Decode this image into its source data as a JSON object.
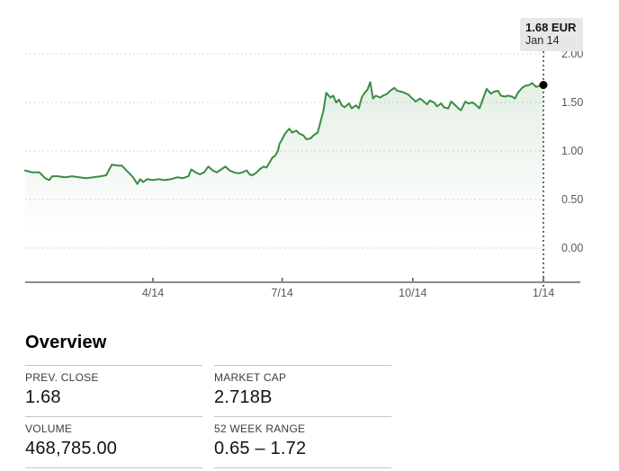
{
  "chart_data": {
    "type": "area",
    "title": "",
    "unit": "EUR",
    "x_unit": "day_of_year",
    "ylim": [
      0,
      2
    ],
    "grid": "dotted horizontal",
    "legend": "none",
    "line_color": "#3a8c43",
    "fill_top_color": "rgba(62,141,70,0.14)",
    "grid_color": "#cfcfcf",
    "axis_color": "#8c8c8c",
    "tick_text_color": "#595959",
    "ytick_labels": [
      "2.00",
      "1.50",
      "1.00",
      "0.50",
      "0.00"
    ],
    "ytick_values": [
      2.0,
      1.5,
      1.0,
      0.5,
      0.0
    ],
    "xtick_labels": [
      "4/14",
      "7/14",
      "10/14",
      "1/14"
    ],
    "xtick_days": [
      90,
      181,
      273,
      365
    ],
    "cursor": {
      "price_label": "1.68 EUR",
      "date_label": "Jan 14",
      "day": 365,
      "value": 1.68
    },
    "x": [
      0,
      5,
      10,
      14,
      17,
      19,
      23,
      28,
      33,
      38,
      43,
      48,
      53,
      57,
      61,
      65,
      68,
      72,
      76,
      79,
      81,
      83,
      86,
      90,
      94,
      98,
      103,
      107,
      111,
      115,
      117,
      120,
      123,
      126,
      129,
      132,
      135,
      138,
      141,
      144,
      147,
      150,
      153,
      156,
      158,
      160,
      163,
      165,
      168,
      170,
      172,
      174,
      176,
      178,
      179,
      181,
      183,
      186,
      188,
      191,
      193,
      196,
      198,
      201,
      203,
      206,
      208,
      210,
      212,
      215,
      217,
      219,
      221,
      223,
      225,
      228,
      230,
      233,
      235,
      237,
      239,
      241,
      243,
      245,
      247,
      250,
      252,
      255,
      257,
      260,
      262,
      265,
      267,
      270,
      272,
      275,
      278,
      280,
      283,
      285,
      288,
      290,
      293,
      295,
      298,
      300,
      303,
      305,
      307,
      310,
      312,
      315,
      317,
      320,
      323,
      325,
      328,
      330,
      333,
      335,
      338,
      340,
      343,
      345,
      347,
      350,
      352,
      355,
      357,
      360,
      362,
      365
    ],
    "values": [
      0.8,
      0.78,
      0.78,
      0.72,
      0.7,
      0.74,
      0.74,
      0.73,
      0.74,
      0.73,
      0.72,
      0.73,
      0.74,
      0.75,
      0.86,
      0.85,
      0.85,
      0.79,
      0.73,
      0.66,
      0.71,
      0.68,
      0.71,
      0.7,
      0.71,
      0.7,
      0.71,
      0.73,
      0.72,
      0.74,
      0.81,
      0.78,
      0.76,
      0.78,
      0.84,
      0.8,
      0.78,
      0.81,
      0.84,
      0.8,
      0.78,
      0.77,
      0.78,
      0.8,
      0.76,
      0.75,
      0.78,
      0.81,
      0.84,
      0.83,
      0.88,
      0.93,
      0.95,
      1.0,
      1.07,
      1.12,
      1.18,
      1.23,
      1.19,
      1.21,
      1.18,
      1.16,
      1.12,
      1.13,
      1.16,
      1.19,
      1.3,
      1.41,
      1.6,
      1.55,
      1.57,
      1.5,
      1.53,
      1.47,
      1.45,
      1.49,
      1.44,
      1.47,
      1.44,
      1.55,
      1.6,
      1.63,
      1.71,
      1.54,
      1.57,
      1.55,
      1.57,
      1.59,
      1.62,
      1.65,
      1.62,
      1.61,
      1.6,
      1.58,
      1.55,
      1.51,
      1.54,
      1.52,
      1.48,
      1.52,
      1.5,
      1.46,
      1.49,
      1.45,
      1.44,
      1.51,
      1.47,
      1.44,
      1.42,
      1.51,
      1.49,
      1.5,
      1.48,
      1.44,
      1.56,
      1.64,
      1.59,
      1.61,
      1.62,
      1.57,
      1.56,
      1.57,
      1.56,
      1.54,
      1.6,
      1.65,
      1.67,
      1.68,
      1.7,
      1.66,
      1.67,
      1.68
    ]
  },
  "tooltip": {
    "price": "1.68 EUR",
    "date": "Jan 14"
  },
  "overview": {
    "title": "Overview",
    "stats": [
      {
        "label": "PREV. CLOSE",
        "value": "1.68"
      },
      {
        "label": "MARKET CAP",
        "value": "2.718B"
      },
      {
        "label": "VOLUME",
        "value": "468,785.00"
      },
      {
        "label": "52 WEEK RANGE",
        "value": "0.65 – 1.72"
      }
    ]
  }
}
